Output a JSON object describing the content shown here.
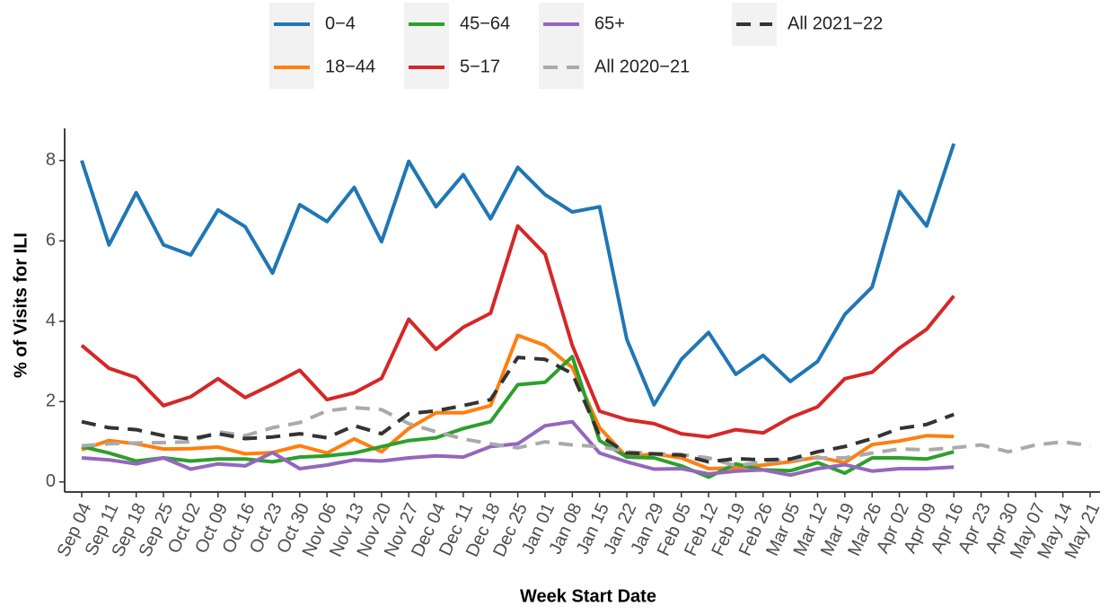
{
  "chart_data": {
    "type": "line",
    "x_label": "Week Start Date",
    "y_label": "% of Visits for ILI",
    "categories": [
      "Sep 04",
      "Sep 11",
      "Sep 18",
      "Sep 25",
      "Oct 02",
      "Oct 09",
      "Oct 16",
      "Oct 23",
      "Oct 30",
      "Nov 06",
      "Nov 13",
      "Nov 20",
      "Nov 27",
      "Dec 04",
      "Dec 11",
      "Dec 18",
      "Dec 25",
      "Jan 01",
      "Jan 08",
      "Jan 15",
      "Jan 22",
      "Jan 29",
      "Feb 05",
      "Feb 12",
      "Feb 19",
      "Feb 26",
      "Mar 05",
      "Mar 12",
      "Mar 19",
      "Mar 26",
      "Apr 02",
      "Apr 09",
      "Apr 16",
      "Apr 23",
      "Apr 30",
      "May 07",
      "May 14",
      "May 21"
    ],
    "ylim": [
      -0.25,
      8.8
    ],
    "yticks": [
      0,
      2,
      4,
      6,
      8
    ],
    "legend_position": "top",
    "series": [
      {
        "name": "0−4",
        "color": "#1f77b4",
        "dashed": false,
        "values": [
          8.0,
          5.9,
          7.2,
          5.9,
          5.65,
          6.77,
          6.35,
          5.2,
          6.9,
          6.48,
          7.33,
          5.98,
          7.98,
          6.85,
          7.65,
          6.55,
          7.83,
          7.15,
          6.72,
          6.85,
          3.55,
          1.92,
          3.05,
          3.72,
          2.68,
          3.15,
          2.5,
          3.0,
          4.17,
          4.85,
          7.23,
          6.37,
          8.42,
          null,
          null,
          null,
          null,
          null
        ]
      },
      {
        "name": "18−44",
        "color": "#ff7f0e",
        "dashed": false,
        "values": [
          0.8,
          1.03,
          0.95,
          0.82,
          0.83,
          0.87,
          0.7,
          0.73,
          0.9,
          0.72,
          1.07,
          0.75,
          1.33,
          1.72,
          1.72,
          1.9,
          3.65,
          3.4,
          2.85,
          1.35,
          0.62,
          0.7,
          0.6,
          0.33,
          0.35,
          0.42,
          0.5,
          0.62,
          0.48,
          0.93,
          1.02,
          1.15,
          1.13,
          null,
          null,
          null,
          null,
          null
        ]
      },
      {
        "name": "45−64",
        "color": "#2ca02c",
        "dashed": false,
        "values": [
          0.88,
          0.72,
          0.52,
          0.6,
          0.52,
          0.57,
          0.57,
          0.5,
          0.62,
          0.65,
          0.72,
          0.88,
          1.03,
          1.1,
          1.33,
          1.5,
          2.42,
          2.48,
          3.12,
          1.03,
          0.62,
          0.6,
          0.4,
          0.12,
          0.45,
          0.3,
          0.28,
          0.48,
          0.22,
          0.6,
          0.6,
          0.57,
          0.75,
          null,
          null,
          null,
          null,
          null
        ]
      },
      {
        "name": "5−17",
        "color": "#d62728",
        "dashed": false,
        "values": [
          3.4,
          2.83,
          2.6,
          1.9,
          2.12,
          2.57,
          2.1,
          2.43,
          2.78,
          2.05,
          2.22,
          2.58,
          4.05,
          3.3,
          3.85,
          4.2,
          6.37,
          5.67,
          3.4,
          1.76,
          1.55,
          1.45,
          1.2,
          1.12,
          1.3,
          1.22,
          1.6,
          1.87,
          2.57,
          2.73,
          3.33,
          3.8,
          4.63,
          null,
          null,
          null,
          null,
          null
        ]
      },
      {
        "name": "65+",
        "color": "#9467bd",
        "dashed": false,
        "values": [
          0.6,
          0.55,
          0.45,
          0.6,
          0.32,
          0.45,
          0.4,
          0.73,
          0.33,
          0.42,
          0.55,
          0.52,
          0.6,
          0.65,
          0.62,
          0.88,
          0.95,
          1.4,
          1.5,
          0.72,
          0.5,
          0.32,
          0.33,
          0.2,
          0.27,
          0.3,
          0.17,
          0.33,
          0.43,
          0.27,
          0.33,
          0.33,
          0.37,
          null,
          null,
          null,
          null,
          null
        ]
      },
      {
        "name": "All 2020−21",
        "color": "#aaaaaa",
        "dashed": true,
        "values": [
          0.9,
          0.95,
          0.97,
          0.98,
          1.0,
          1.25,
          1.15,
          1.35,
          1.48,
          1.77,
          1.85,
          1.8,
          1.45,
          1.25,
          1.07,
          0.95,
          0.85,
          1.0,
          0.92,
          0.88,
          0.75,
          0.7,
          0.68,
          0.6,
          0.4,
          0.5,
          0.55,
          0.6,
          0.6,
          0.72,
          0.82,
          0.8,
          0.85,
          0.92,
          0.75,
          0.92,
          1.0,
          0.9
        ]
      },
      {
        "name": "All 2021−22",
        "color": "#333333",
        "dashed": true,
        "values": [
          1.5,
          1.35,
          1.3,
          1.15,
          1.07,
          1.2,
          1.08,
          1.12,
          1.2,
          1.1,
          1.4,
          1.2,
          1.7,
          1.77,
          1.9,
          2.05,
          3.1,
          3.05,
          2.7,
          1.15,
          0.72,
          0.7,
          0.67,
          0.5,
          0.58,
          0.55,
          0.57,
          0.75,
          0.88,
          1.08,
          1.33,
          1.43,
          1.68,
          null,
          null,
          null,
          null,
          null
        ]
      }
    ]
  }
}
